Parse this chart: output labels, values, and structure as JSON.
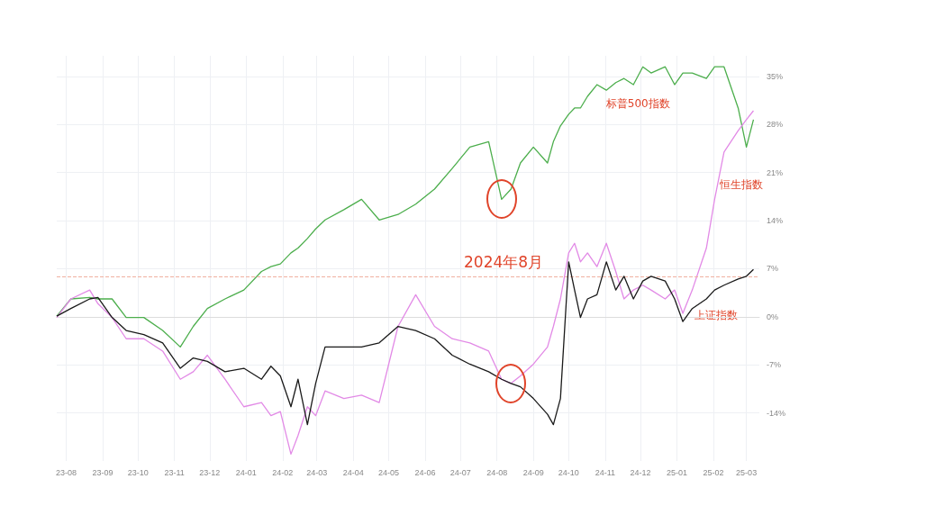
{
  "chart_data": {
    "type": "line",
    "x": [
      "2023-07-24",
      "2023-08-05",
      "2023-08-21",
      "2023-08-28",
      "2023-09-09",
      "2023-09-21",
      "2023-10-06",
      "2023-10-22",
      "2023-11-06",
      "2023-11-17",
      "2023-11-29",
      "2023-12-14",
      "2023-12-30",
      "2024-01-14",
      "2024-01-22",
      "2024-01-30",
      "2024-02-08",
      "2024-02-14",
      "2024-02-22",
      "2024-02-29",
      "2024-03-08",
      "2024-03-24",
      "2024-04-08",
      "2024-04-23",
      "2024-05-09",
      "2024-05-24",
      "2024-06-09",
      "2024-06-24",
      "2024-07-09",
      "2024-07-25",
      "2024-08-05",
      "2024-08-13",
      "2024-08-21",
      "2024-09-01",
      "2024-09-13",
      "2024-09-18",
      "2024-09-24",
      "2024-10-01",
      "2024-10-06",
      "2024-10-11",
      "2024-10-17",
      "2024-10-25",
      "2024-11-02",
      "2024-11-10",
      "2024-11-17",
      "2024-11-25",
      "2024-12-03",
      "2024-12-10",
      "2024-12-22",
      "2024-12-30",
      "2025-01-06",
      "2025-01-14",
      "2025-01-26",
      "2025-02-02",
      "2025-02-10",
      "2025-02-22",
      "2025-03-01",
      "2025-03-07"
    ],
    "series": [
      {
        "name": "标普500指数",
        "color": "#4cae4c",
        "values": [
          0.1,
          2.6,
          2.8,
          2.6,
          2.6,
          -0.1,
          -0.1,
          -2.0,
          -4.4,
          -1.4,
          1.2,
          2.6,
          3.9,
          6.6,
          7.3,
          7.7,
          9.3,
          10.0,
          11.4,
          12.8,
          14.1,
          15.6,
          17.1,
          14.1,
          14.9,
          16.4,
          18.6,
          21.6,
          24.7,
          25.5,
          17.1,
          18.6,
          22.4,
          24.7,
          22.4,
          25.5,
          27.8,
          29.5,
          30.4,
          30.4,
          32.1,
          33.8,
          33.0,
          34.1,
          34.7,
          33.8,
          36.4,
          35.5,
          36.4,
          33.8,
          35.5,
          35.5,
          34.7,
          36.4,
          36.4,
          30.4,
          24.7,
          28.7
        ]
      },
      {
        "name": "恒生指数",
        "color": "#e28ae6",
        "values": [
          -0.1,
          2.6,
          3.9,
          1.9,
          -0.1,
          -3.2,
          -3.2,
          -5.0,
          -9.1,
          -8.0,
          -5.6,
          -9.1,
          -13.1,
          -12.5,
          -14.4,
          -13.8,
          -20.0,
          -17.3,
          -13.1,
          -14.4,
          -10.8,
          -11.9,
          -11.4,
          -12.5,
          -1.4,
          3.2,
          -1.4,
          -3.2,
          -3.8,
          -5.0,
          -9.1,
          -9.7,
          -8.6,
          -6.9,
          -4.4,
          -1.4,
          2.6,
          9.3,
          10.7,
          8.0,
          9.3,
          7.3,
          10.7,
          6.6,
          2.6,
          3.9,
          4.6,
          3.9,
          2.6,
          3.9,
          0.5,
          3.9,
          10.0,
          17.1,
          24.0,
          27.1,
          28.7,
          30.0
        ]
      },
      {
        "name": "上证指数",
        "color": "#1a1a1a",
        "values": [
          0.1,
          1.2,
          2.6,
          2.8,
          -0.1,
          -2.0,
          -2.6,
          -3.8,
          -7.5,
          -6.0,
          -6.5,
          -8.0,
          -7.5,
          -9.1,
          -7.2,
          -8.6,
          -13.1,
          -9.1,
          -15.7,
          -9.7,
          -4.4,
          -4.4,
          -4.4,
          -3.8,
          -1.4,
          -2.0,
          -3.2,
          -5.6,
          -6.9,
          -8.0,
          -9.1,
          -9.7,
          -10.2,
          -11.9,
          -14.2,
          -15.7,
          -11.9,
          8.0,
          3.9,
          -0.1,
          2.6,
          3.2,
          8.0,
          3.9,
          5.9,
          2.6,
          5.2,
          5.9,
          5.2,
          2.6,
          -0.7,
          1.2,
          2.6,
          3.9,
          4.6,
          5.5,
          5.9,
          6.9
        ]
      }
    ],
    "ylim": [
      -21,
      38
    ],
    "yticks": [
      {
        "value": -14,
        "label": "-14%"
      },
      {
        "value": -7,
        "label": "-7%"
      },
      {
        "value": 0,
        "label": "0%"
      },
      {
        "value": 7,
        "label": "7%"
      },
      {
        "value": 14,
        "label": "14%"
      },
      {
        "value": 21,
        "label": "21%"
      },
      {
        "value": 28,
        "label": "28%"
      },
      {
        "value": 35,
        "label": "35%"
      }
    ],
    "xlim": [
      "2023-07-24",
      "2025-03-12"
    ],
    "xticks": [
      {
        "value": "2023-08-01",
        "label": "23-08"
      },
      {
        "value": "2023-09-01",
        "label": "23-09"
      },
      {
        "value": "2023-10-01",
        "label": "23-10"
      },
      {
        "value": "2023-11-01",
        "label": "23-11"
      },
      {
        "value": "2023-12-01",
        "label": "23-12"
      },
      {
        "value": "2024-01-01",
        "label": "24-01"
      },
      {
        "value": "2024-02-01",
        "label": "24-02"
      },
      {
        "value": "2024-03-01",
        "label": "24-03"
      },
      {
        "value": "2024-04-01",
        "label": "24-04"
      },
      {
        "value": "2024-05-01",
        "label": "24-05"
      },
      {
        "value": "2024-06-01",
        "label": "24-06"
      },
      {
        "value": "2024-07-01",
        "label": "24-07"
      },
      {
        "value": "2024-08-01",
        "label": "24-08"
      },
      {
        "value": "2024-09-01",
        "label": "24-09"
      },
      {
        "value": "2024-10-01",
        "label": "24-10"
      },
      {
        "value": "2024-11-01",
        "label": "24-11"
      },
      {
        "value": "2024-12-01",
        "label": "24-12"
      },
      {
        "value": "2025-01-01",
        "label": "25-01"
      },
      {
        "value": "2025-02-01",
        "label": "25-02"
      },
      {
        "value": "2025-03-01",
        "label": "25-03"
      }
    ],
    "ref_lines": [
      {
        "axis": "y",
        "value": 5.9,
        "color": "#f0b0a0",
        "line_style": "dashed"
      }
    ],
    "annotations": [
      "2024年8月"
    ],
    "grid": true,
    "legend": false,
    "marker": "none",
    "line_style": "solid"
  }
}
